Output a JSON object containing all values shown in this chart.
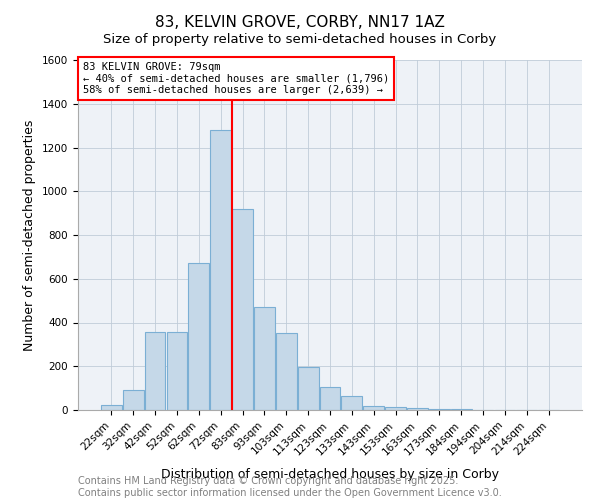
{
  "title": "83, KELVIN GROVE, CORBY, NN17 1AZ",
  "subtitle": "Size of property relative to semi-detached houses in Corby",
  "xlabel": "Distribution of semi-detached houses by size in Corby",
  "ylabel": "Number of semi-detached properties",
  "categories": [
    "22sqm",
    "32sqm",
    "42sqm",
    "52sqm",
    "62sqm",
    "72sqm",
    "83sqm",
    "93sqm",
    "103sqm",
    "113sqm",
    "123sqm",
    "133sqm",
    "143sqm",
    "153sqm",
    "163sqm",
    "173sqm",
    "184sqm",
    "194sqm",
    "204sqm",
    "214sqm",
    "224sqm"
  ],
  "values": [
    25,
    90,
    355,
    355,
    670,
    1280,
    920,
    470,
    350,
    198,
    105,
    65,
    20,
    12,
    10,
    5,
    5,
    2,
    1,
    0,
    0
  ],
  "bar_color": "#c5d8e8",
  "bar_edge_color": "#7bafd4",
  "property_label": "83 KELVIN GROVE: 79sqm",
  "pct_smaller": 40,
  "count_smaller": 1796,
  "pct_larger": 58,
  "count_larger": 2639,
  "vline_color": "red",
  "annotation_box_color": "#ffffff",
  "annotation_box_edge": "red",
  "ylim": [
    0,
    1600
  ],
  "yticks": [
    0,
    200,
    400,
    600,
    800,
    1000,
    1200,
    1400,
    1600
  ],
  "footer_line1": "Contains HM Land Registry data © Crown copyright and database right 2025.",
  "footer_line2": "Contains public sector information licensed under the Open Government Licence v3.0.",
  "title_fontsize": 11,
  "subtitle_fontsize": 9.5,
  "tick_fontsize": 7.5,
  "axis_label_fontsize": 9,
  "footer_fontsize": 7,
  "bg_color": "#eef2f7"
}
